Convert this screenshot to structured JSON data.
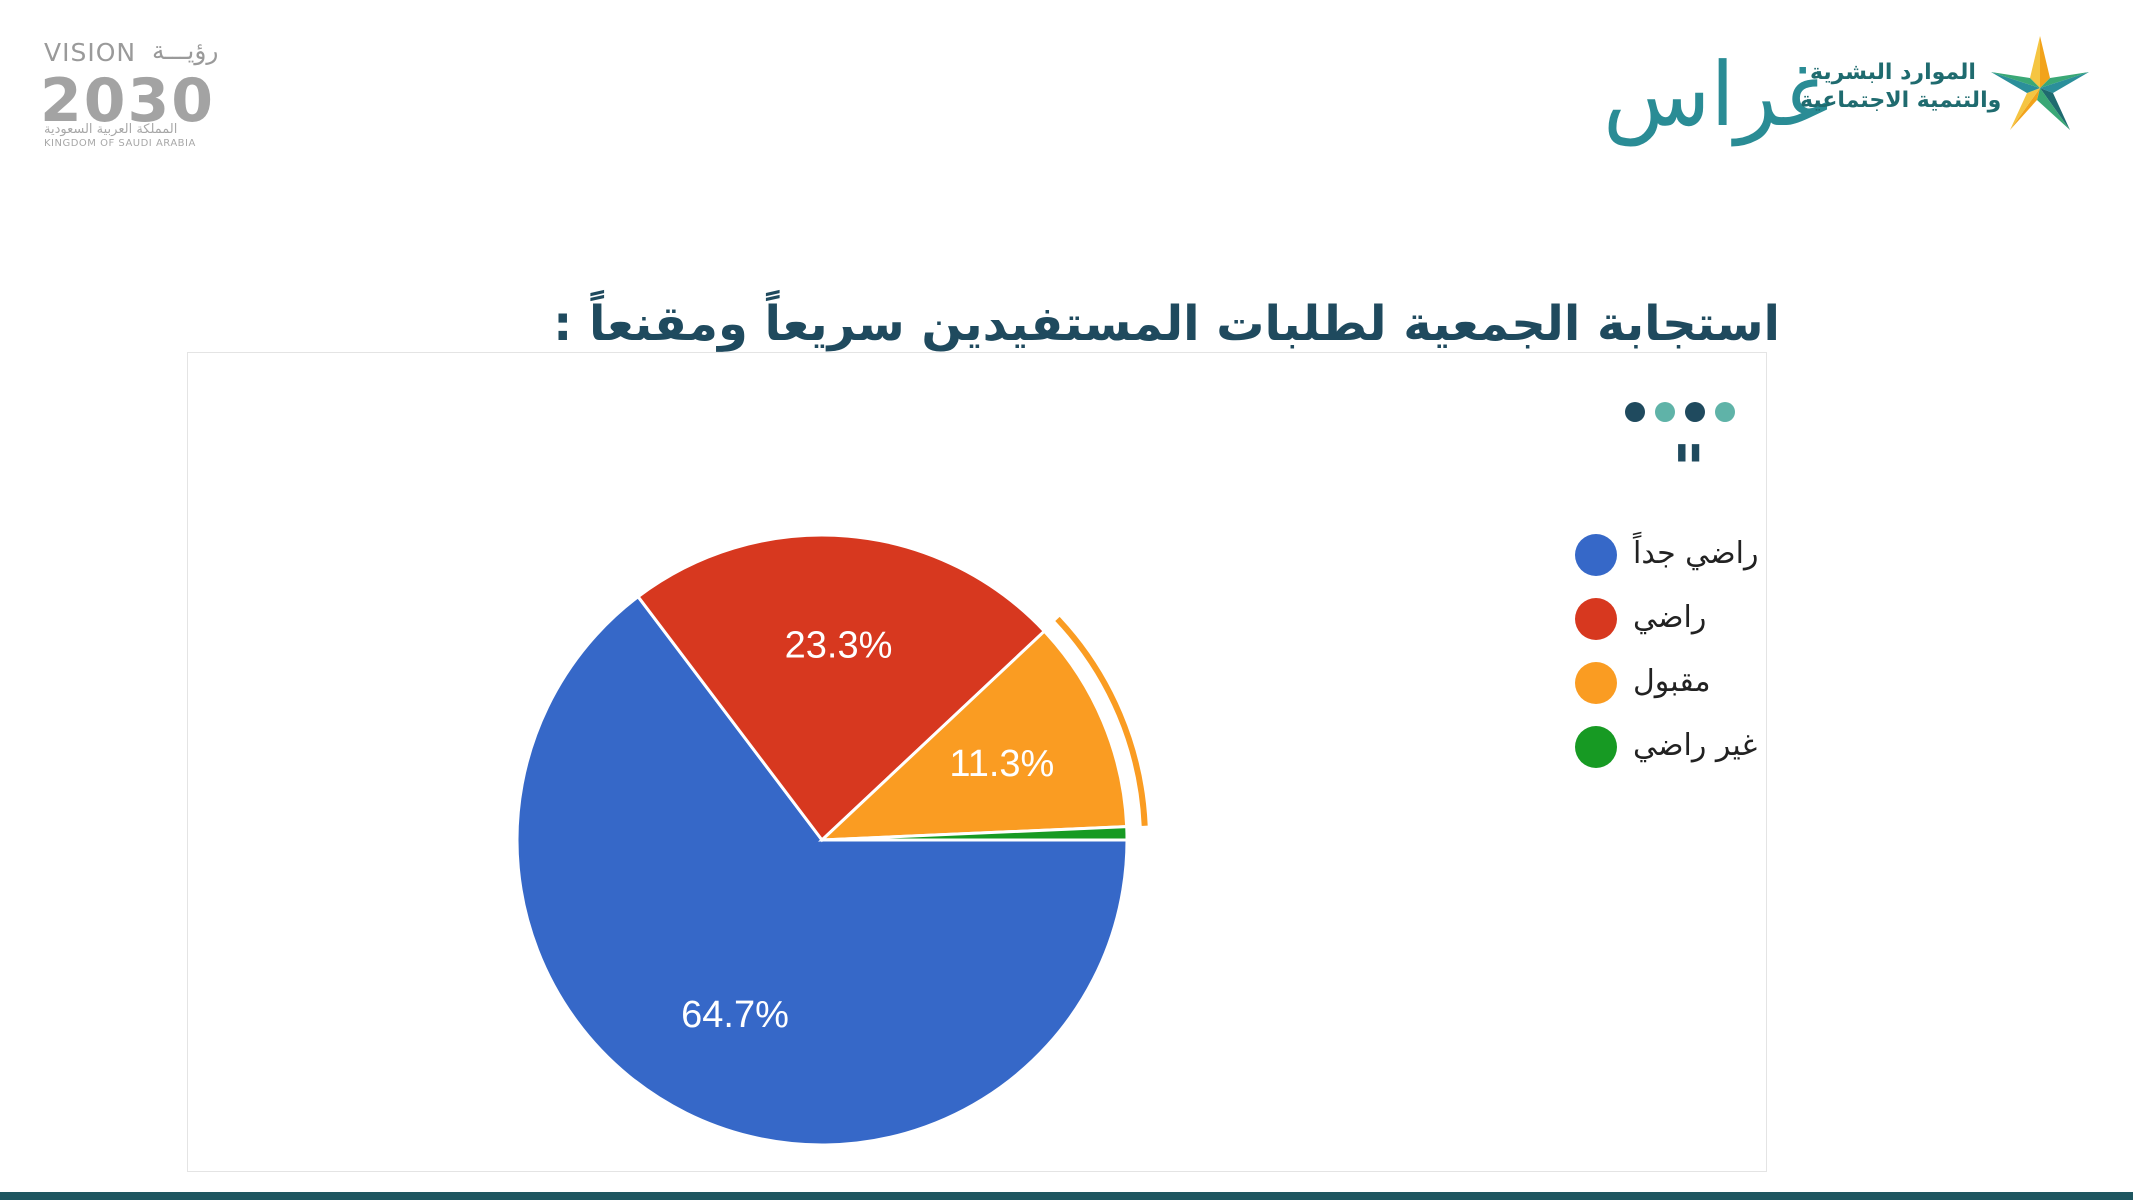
{
  "header": {
    "vision_logo": {
      "latin": "VISION",
      "arabic": "رؤيـــة",
      "year": "2030",
      "sub_arabic": "المملكة العربية السعودية",
      "sub_latin": "KINGDOM OF SAUDI ARABIA"
    },
    "ghiras_logo": {
      "text": "غراس"
    },
    "ministry_logo": {
      "line1": "الموارد البشرية",
      "line2": "والتنمية الاجتماعية"
    }
  },
  "title": "استجابة الجمعية لطلبات المستفيدين سريعاً ومقنعاً :",
  "decor": {
    "quote_mark": "\"",
    "dot_colors": [
      "#1f4a5e",
      "#5fb3a8",
      "#1f4a5e",
      "#5fb3a8"
    ]
  },
  "chart_data": {
    "type": "pie",
    "title": "",
    "categories": [
      "راضي جداً",
      "راضي",
      "مقبول",
      "غير راضي"
    ],
    "values": [
      64.7,
      23.3,
      11.3,
      0.7
    ],
    "labels": [
      "64.7%",
      "23.3%",
      "11.3%",
      ""
    ],
    "colors": [
      "#3668c8",
      "#d7381f",
      "#fa9c22",
      "#179a23"
    ],
    "exploded_slice": "مقبول",
    "legend_position": "right"
  },
  "colors": {
    "title": "#1f4a5e",
    "bottom_bar": "#1e5660"
  }
}
